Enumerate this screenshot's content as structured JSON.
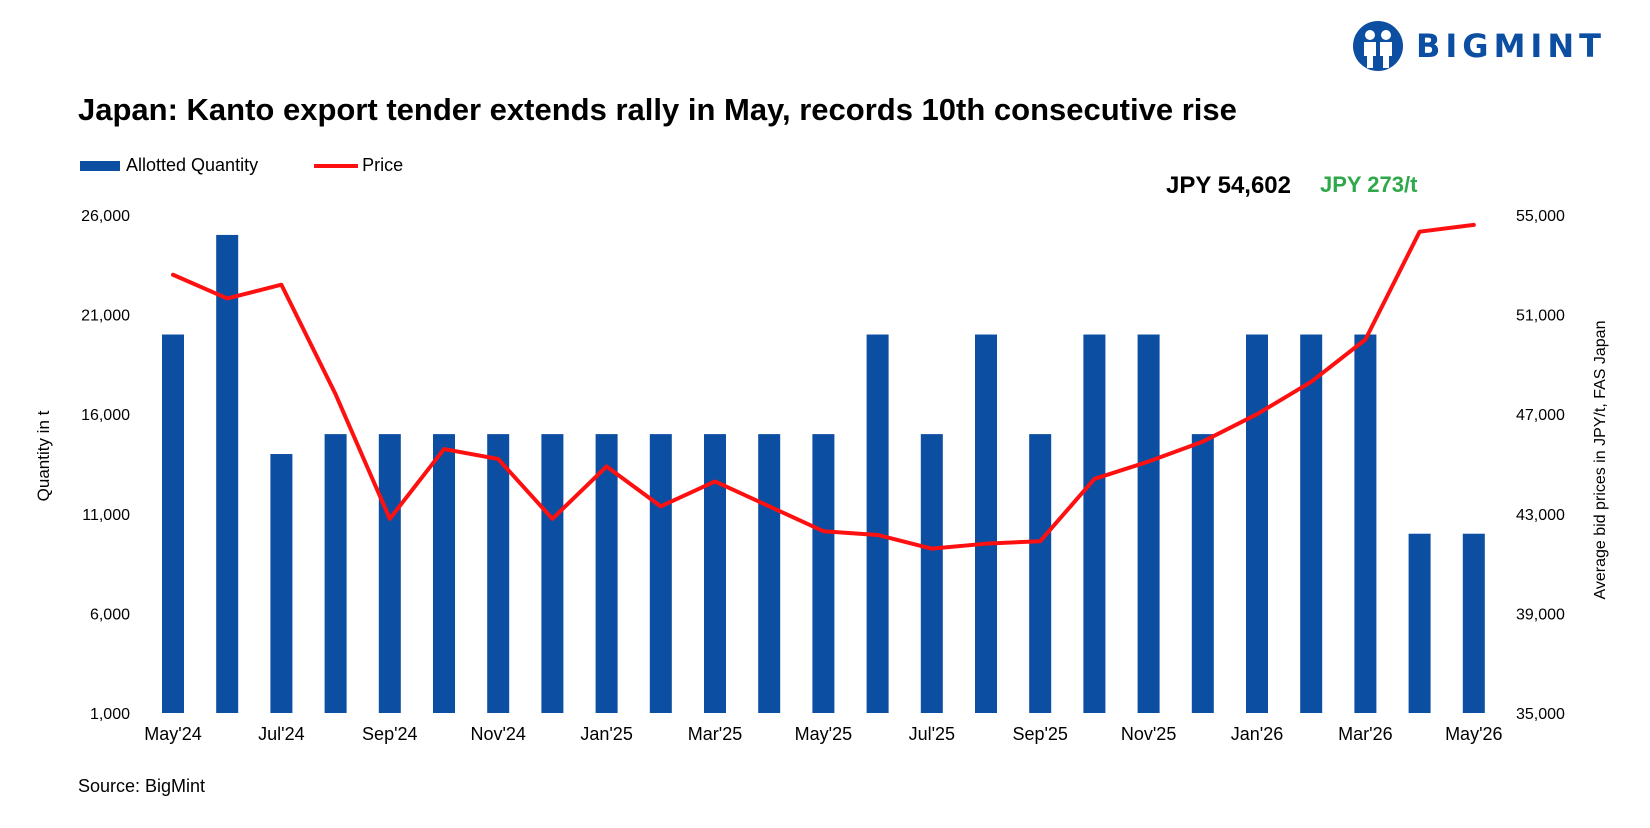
{
  "brand": {
    "name": "BIGMINT",
    "color": "#0b4ea2",
    "icon": "bigmint-logo-icon"
  },
  "source": "Source: BigMint",
  "annotations": {
    "latest_price": "JPY 54,602",
    "change": "JPY 273/t",
    "change_color": "#2ea84a"
  },
  "chart_data": {
    "type": "bar",
    "title": "Japan: Kanto export tender extends rally in May, records 10th consecutive rise",
    "ylabel": "Quantity in t",
    "y2label": "Average bid prices in JPY/t, FAS Japan",
    "ylim": [
      1000,
      26000
    ],
    "y2lim": [
      35000,
      55000
    ],
    "yticks": [
      "26,000",
      "21,000",
      "16,000",
      "11,000",
      "6,000",
      "1,000"
    ],
    "y2ticks": [
      "55,000",
      "51,000",
      "47,000",
      "43,000",
      "39,000",
      "35,000"
    ],
    "xticks": [
      "May'24",
      "Jul'24",
      "Sep'24",
      "Nov'24",
      "Jan'25",
      "Mar'25",
      "May'25",
      "Jul'25",
      "Sep'25",
      "Nov'25",
      "Jan'26",
      "Mar'26",
      "May'26"
    ],
    "categories": [
      "May'24",
      "Jun'24",
      "Jul'24",
      "Aug'24",
      "Sep'24",
      "Oct'24",
      "Nov'24",
      "Dec'24",
      "Jan'25",
      "Feb'25",
      "Mar'25",
      "Apr'25",
      "May'25",
      "Jun'25",
      "Jul'25",
      "Aug'25",
      "Sep'25",
      "Oct'25",
      "Nov'25",
      "Dec'25",
      "Jan'26",
      "Feb'26",
      "Mar'26",
      "Apr'26",
      "May'26"
    ],
    "grid": false,
    "legend_position": "top-left",
    "series": [
      {
        "name": "Allotted Quantity",
        "type": "bar",
        "axis": "left",
        "color": "#0b4ea2",
        "values": [
          20000,
          25000,
          14000,
          15000,
          15000,
          15000,
          15000,
          15000,
          15000,
          15000,
          15000,
          15000,
          15000,
          20000,
          15000,
          20000,
          15000,
          20000,
          20000,
          15000,
          20000,
          20000,
          20000,
          10000,
          10000
        ]
      },
      {
        "name": "Price",
        "type": "line",
        "axis": "right",
        "color": "#ff1010",
        "values": [
          52600,
          51650,
          52200,
          47800,
          42800,
          45600,
          45200,
          42800,
          44900,
          43300,
          44300,
          43300,
          42300,
          42150,
          41600,
          41800,
          41900,
          44400,
          45100,
          45900,
          47000,
          48300,
          50000,
          54330,
          54602
        ]
      }
    ]
  }
}
